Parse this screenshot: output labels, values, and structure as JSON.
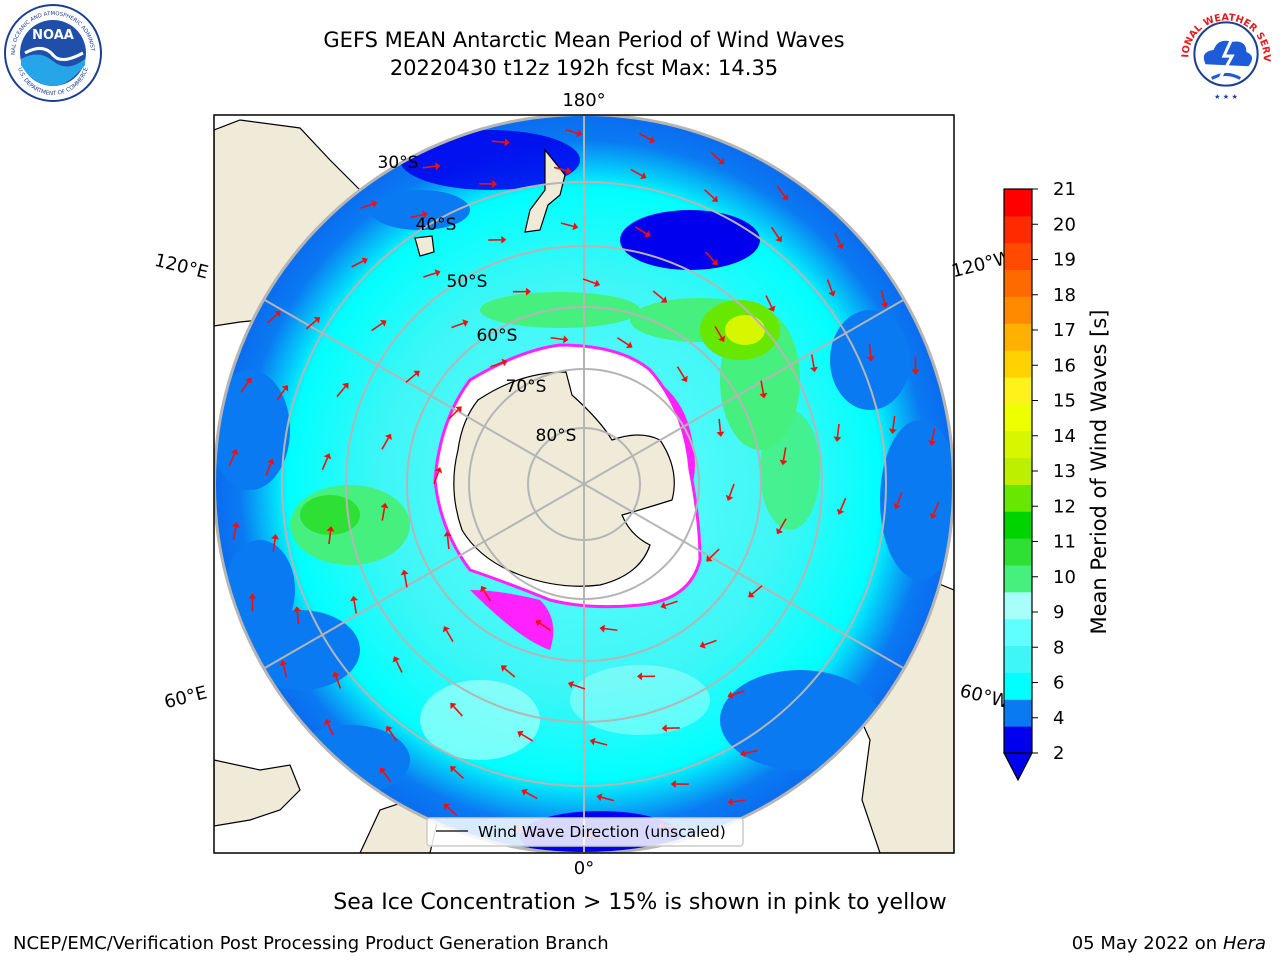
{
  "title": {
    "line1": "GEFS MEAN Antarctic Mean Period of Wind Waves",
    "line2": "20220430 t12z 192h fcst   Max: 14.35"
  },
  "logos": {
    "noaa_text": "NOAA",
    "noaa_ring_top": "NATIONAL OCEANIC AND ATMOSPHERIC ADMINISTRATION",
    "noaa_ring_bottom": "U.S. DEPARTMENT OF COMMERCE",
    "nws_ring_top": "NATIONAL WEATHER SERVICE",
    "nws_stars": "★ ★ ★"
  },
  "map": {
    "projection": "south-polar-stereographic",
    "longitude_labels": {
      "top": "180°",
      "bottom": "0°",
      "upper_left": "120°E",
      "lower_left": "60°E",
      "upper_right": "120°W",
      "lower_right": "60°W"
    },
    "latitude_labels": [
      "30°S",
      "40°S",
      "50°S",
      "60°S",
      "70°S",
      "80°S"
    ],
    "colors": {
      "land": "#efebd8",
      "grid": "#b5b5b5",
      "arrow": "#ee1010",
      "sea_ice_edge": "#ff22ff",
      "ice_shelf": "#ffffff"
    },
    "legend_label": "Wind Wave Direction (unscaled)"
  },
  "colorbar": {
    "label": "Mean Period of Wind Waves [s]",
    "ticks": [
      "21",
      "20",
      "19",
      "18",
      "17",
      "16",
      "15",
      "14",
      "13",
      "12",
      "11",
      "10",
      "9",
      "8",
      "6",
      "4",
      "2"
    ],
    "colors_bottom_to_top": [
      "#0000ee",
      "#0a7af2",
      "#00ffff",
      "#3ff6f6",
      "#5fffff",
      "#a7fffa",
      "#46f07e",
      "#2ee033",
      "#00d400",
      "#68e800",
      "#bdf000",
      "#d7f700",
      "#eeff00",
      "#fff21a",
      "#ffd200",
      "#ffb000",
      "#ff8a00",
      "#ff6a00",
      "#ff4a00",
      "#ff2a00",
      "#ff0000"
    ]
  },
  "caption": "Sea Ice Concentration > 15% is shown in pink to yellow",
  "footer": {
    "left": "NCEP/EMC/Verification Post Processing Product Generation Branch",
    "right_date": "05 May 2022 on",
    "right_machine": "Hera"
  }
}
